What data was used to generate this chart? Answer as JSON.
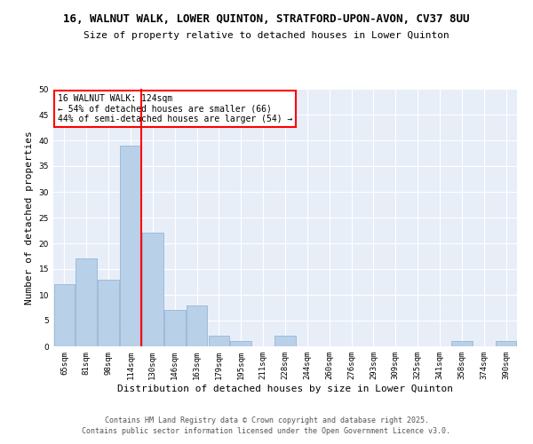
{
  "title": "16, WALNUT WALK, LOWER QUINTON, STRATFORD-UPON-AVON, CV37 8UU",
  "subtitle": "Size of property relative to detached houses in Lower Quinton",
  "xlabel": "Distribution of detached houses by size in Lower Quinton",
  "ylabel": "Number of detached properties",
  "categories": [
    "65sqm",
    "81sqm",
    "98sqm",
    "114sqm",
    "130sqm",
    "146sqm",
    "163sqm",
    "179sqm",
    "195sqm",
    "211sqm",
    "228sqm",
    "244sqm",
    "260sqm",
    "276sqm",
    "293sqm",
    "309sqm",
    "325sqm",
    "341sqm",
    "358sqm",
    "374sqm",
    "390sqm"
  ],
  "values": [
    12,
    17,
    13,
    39,
    22,
    7,
    8,
    2,
    1,
    0,
    2,
    0,
    0,
    0,
    0,
    0,
    0,
    0,
    1,
    0,
    1
  ],
  "bar_color": "#b8d0e8",
  "bar_edge_color": "#8ab0d0",
  "vline_index": 3.5,
  "vline_color": "red",
  "annotation_text": "16 WALNUT WALK: 124sqm\n← 54% of detached houses are smaller (66)\n44% of semi-detached houses are larger (54) →",
  "annotation_box_color": "white",
  "annotation_box_edge_color": "red",
  "ylim": [
    0,
    50
  ],
  "yticks": [
    0,
    5,
    10,
    15,
    20,
    25,
    30,
    35,
    40,
    45,
    50
  ],
  "bg_color": "#e8eef8",
  "footer": "Contains HM Land Registry data © Crown copyright and database right 2025.\nContains public sector information licensed under the Open Government Licence v3.0.",
  "title_fontsize": 9,
  "subtitle_fontsize": 8,
  "tick_fontsize": 6.5,
  "label_fontsize": 8,
  "annotation_fontsize": 7,
  "footer_fontsize": 6
}
